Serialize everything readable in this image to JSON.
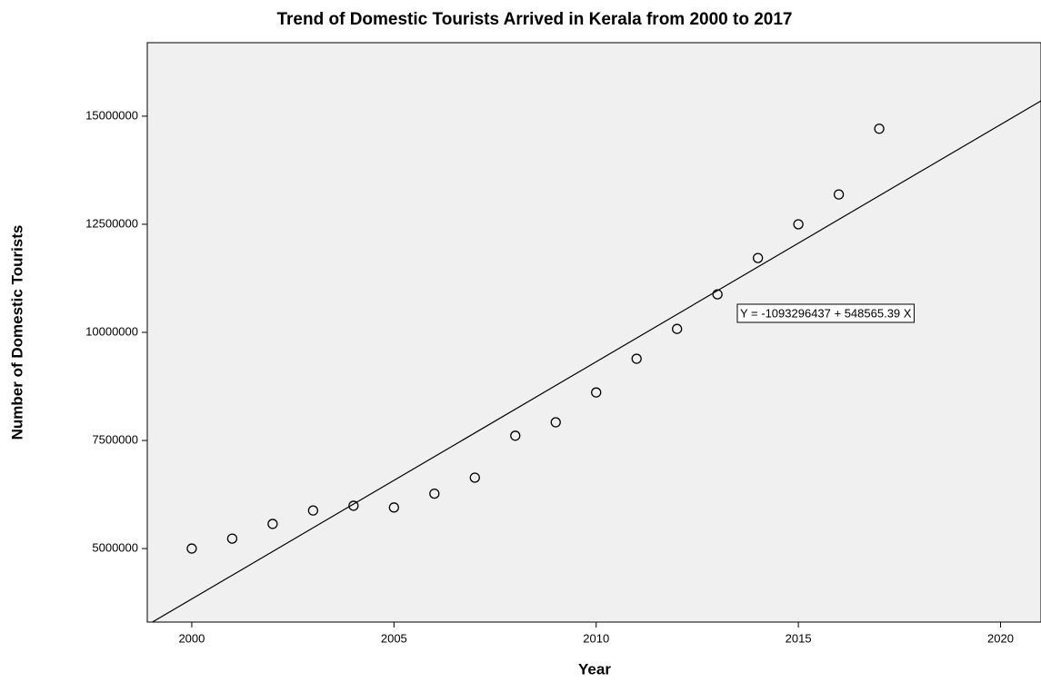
{
  "chart_data": {
    "type": "scatter",
    "title": "Trend of Domestic Tourists Arrived in Kerala from 2000 to 2017",
    "x_label": "Year",
    "y_label": "Number of Domestic Tourists",
    "x": [
      2000,
      2001,
      2002,
      2003,
      2004,
      2005,
      2006,
      2007,
      2008,
      2009,
      2010,
      2011,
      2012,
      2013,
      2014,
      2015,
      2016,
      2017
    ],
    "values": [
      5000000,
      5230000,
      5570000,
      5880000,
      5990000,
      5950000,
      6270000,
      6640000,
      7610000,
      7920000,
      8610000,
      9390000,
      10080000,
      10880000,
      11720000,
      12500000,
      13190000,
      14710000
    ],
    "color": "#000000",
    "regression": {
      "intercept": -1093296437,
      "slope": 548565.39
    },
    "annotation": "Y = -1093296437 + 548565.39 X",
    "xlim": [
      1998.9,
      2021
    ],
    "ylim": [
      3300000,
      16700000
    ],
    "xticks": [
      2000,
      2005,
      2010,
      2015,
      2020
    ],
    "yticks": [
      5000000,
      7500000,
      10000000,
      12500000,
      15000000
    ],
    "background": "#f0f0f0"
  }
}
